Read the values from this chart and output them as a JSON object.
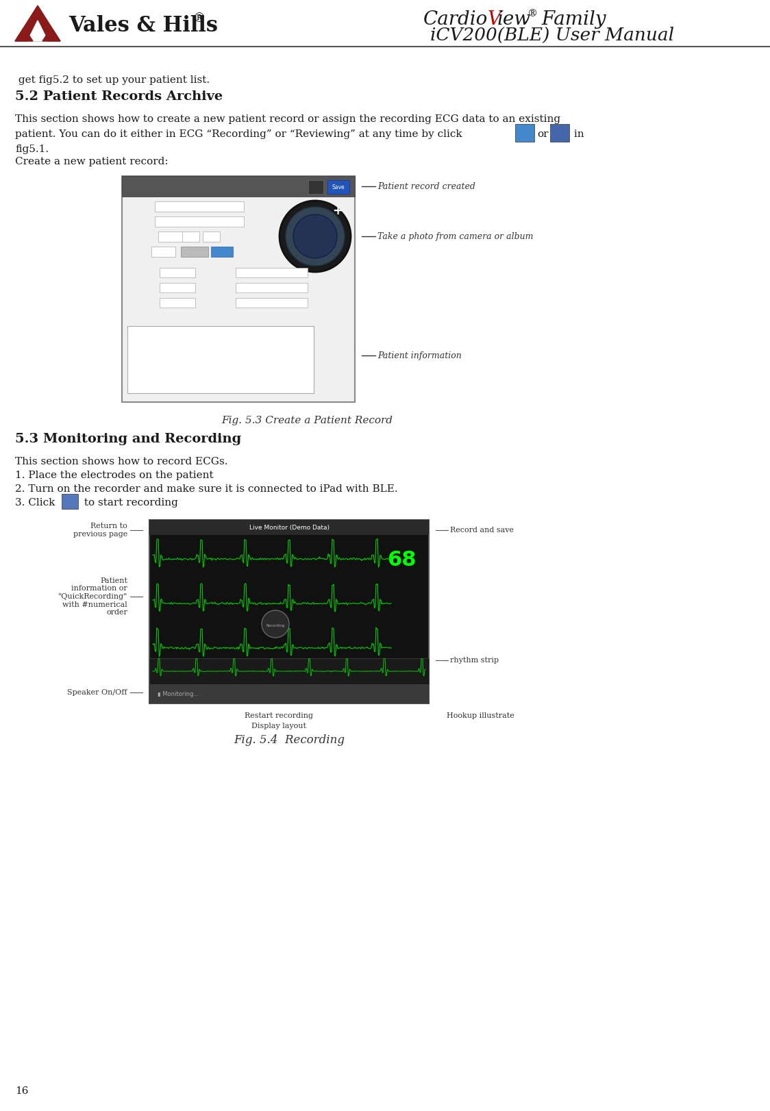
{
  "background_color": "#ffffff",
  "header": {
    "logo_text": "Vales & Hills",
    "logo_symbol": "®",
    "title_cardio": "Cardio",
    "title_v": "V",
    "title_iew": "iew",
    "title_reg": "®",
    "title_family": " Family",
    "title_line2": "iCV200(BLE) User Manual",
    "logo_color": "#1a1a1a",
    "title_color": "#1a1a1a",
    "title_v_color": "#cc0000"
  },
  "page_number": "16",
  "pre_text": " get fig5.2 to set up your patient list.",
  "heading_52": "5.2 Patient Records Archive",
  "body_line1": "This section shows how to create a new patient record or assign the recording ECG data to an existing",
  "body_line2": "patient. You can do it either in ECG “Recording” or “Reviewing” at any time by click",
  "body_line2_end": " in",
  "body_line3": "fig5.1.",
  "body_line4": "Create a new patient record:",
  "heading_53": "5.3 Monitoring and Recording",
  "sec53_line1": "This section shows how to record ECGs.",
  "sec53_line2": "1. Place the electrodes on the patient",
  "sec53_line3": "2. Turn on the recorder and make sure it is connected to iPad with BLE.",
  "sec53_line4_pre": "3. Click",
  "sec53_line4_post": " to start recording",
  "fig53_caption": "Fig. 5.3 Create a Patient Record",
  "fig53_ann1": "Patient record created",
  "fig53_ann2": "Take a photo from camera or album",
  "fig53_ann3": "Patient information",
  "fig54_caption": "Fig. 5.4  Recording",
  "fig54_left1": "Return to\nprevious page",
  "fig54_left2": "Patient\ninformation or\n\"QuickRecording\"\nwith #numerical\norder",
  "fig54_left3": "Speaker On/Off",
  "fig54_right1": "Record and save",
  "fig54_right2": "rhythm strip",
  "fig54_bottom1": "Restart recording",
  "fig54_bottom2": "Display layout",
  "fig54_bottom3": "Hookup illustrate",
  "font_size_body": 11,
  "font_size_heading": 13,
  "logo_dark_red": "#8B1A1A"
}
